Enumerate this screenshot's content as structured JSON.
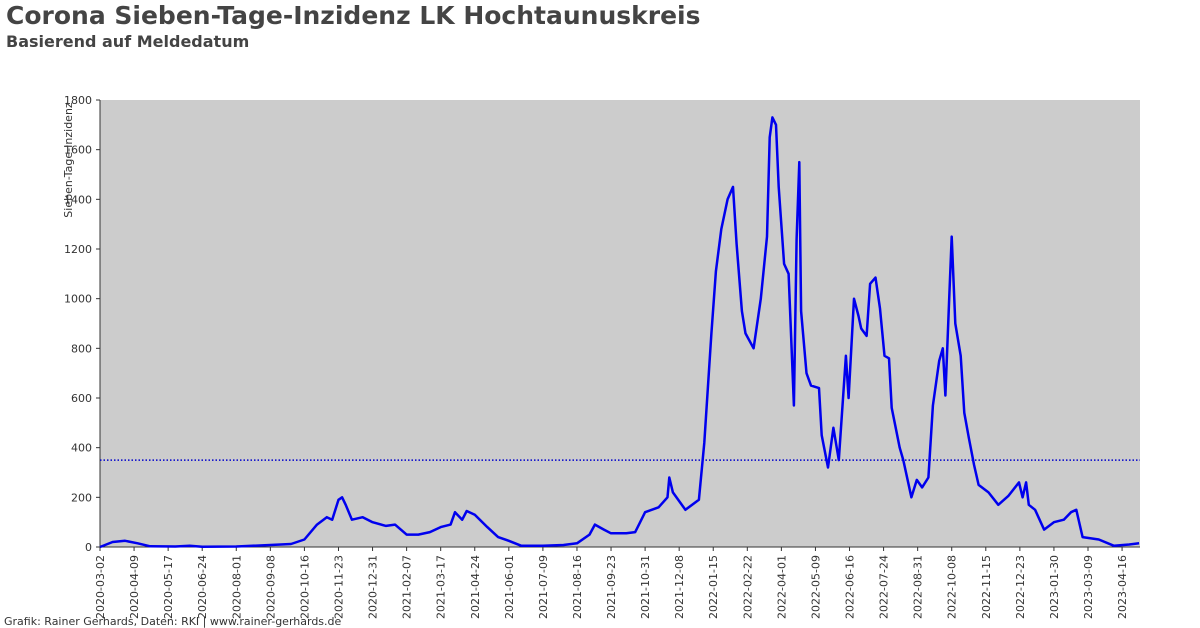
{
  "chart_data": {
    "type": "line",
    "title": "Corona Sieben-Tage-Inzidenz LK Hochtaunuskreis",
    "subtitle": "Basierend auf Meldedatum",
    "y_label": "Sieben-Tage-Inzidenz",
    "footer": "Grafik: Rainer Gerhards, Daten: RKI | www.rainer-gerhards.de",
    "xlim": [
      "2020-03-02",
      "2023-05-06"
    ],
    "ylim": [
      0,
      1800
    ],
    "yticks": [
      0,
      200,
      400,
      600,
      800,
      1000,
      1200,
      1400,
      1600,
      1800
    ],
    "xticks": [
      "2020-03-02",
      "2020-04-09",
      "2020-05-17",
      "2020-06-24",
      "2020-08-01",
      "2020-09-08",
      "2020-10-16",
      "2020-11-23",
      "2020-12-31",
      "2021-02-07",
      "2021-03-17",
      "2021-04-24",
      "2021-06-01",
      "2021-07-09",
      "2021-08-16",
      "2021-09-23",
      "2021-10-31",
      "2021-12-08",
      "2022-01-15",
      "2022-02-22",
      "2022-04-01",
      "2022-05-09",
      "2022-06-16",
      "2022-07-24",
      "2022-08-31",
      "2022-10-08",
      "2022-11-15",
      "2022-12-23",
      "2023-01-30",
      "2023-03-09",
      "2023-04-16"
    ],
    "reference_line": 350,
    "reference_color": "#0000cc",
    "x": [
      "2020-03-02",
      "2020-03-16",
      "2020-03-30",
      "2020-04-13",
      "2020-04-27",
      "2020-05-25",
      "2020-06-10",
      "2020-06-24",
      "2020-08-01",
      "2020-09-08",
      "2020-10-01",
      "2020-10-16",
      "2020-10-30",
      "2020-11-10",
      "2020-11-16",
      "2020-11-23",
      "2020-11-27",
      "2020-12-01",
      "2020-12-08",
      "2020-12-20",
      "2020-12-31",
      "2021-01-15",
      "2021-01-25",
      "2021-02-07",
      "2021-02-20",
      "2021-03-05",
      "2021-03-17",
      "2021-03-28",
      "2021-04-02",
      "2021-04-10",
      "2021-04-15",
      "2021-04-24",
      "2021-05-08",
      "2021-05-20",
      "2021-06-01",
      "2021-06-15",
      "2021-07-09",
      "2021-08-01",
      "2021-08-16",
      "2021-08-30",
      "2021-09-05",
      "2021-09-15",
      "2021-09-23",
      "2021-10-10",
      "2021-10-20",
      "2021-10-31",
      "2021-11-15",
      "2021-11-25",
      "2021-11-27",
      "2021-12-01",
      "2021-12-15",
      "2021-12-30",
      "2022-01-05",
      "2022-01-13",
      "2022-01-18",
      "2022-01-24",
      "2022-01-31",
      "2022-02-06",
      "2022-02-10",
      "2022-02-16",
      "2022-02-20",
      "2022-03-01",
      "2022-03-09",
      "2022-03-16",
      "2022-03-19",
      "2022-03-22",
      "2022-03-26",
      "2022-03-29",
      "2022-04-04",
      "2022-04-09",
      "2022-04-15",
      "2022-04-18",
      "2022-04-21",
      "2022-04-23",
      "2022-04-29",
      "2022-05-04",
      "2022-05-13",
      "2022-05-16",
      "2022-05-23",
      "2022-05-29",
      "2022-06-04",
      "2022-06-12",
      "2022-06-15",
      "2022-06-21",
      "2022-06-26",
      "2022-06-29",
      "2022-07-05",
      "2022-07-09",
      "2022-07-15",
      "2022-07-20",
      "2022-07-25",
      "2022-07-30",
      "2022-08-02",
      "2022-08-06",
      "2022-08-11",
      "2022-08-15",
      "2022-08-24",
      "2022-08-30",
      "2022-09-05",
      "2022-09-12",
      "2022-09-17",
      "2022-09-24",
      "2022-09-28",
      "2022-10-01",
      "2022-10-05",
      "2022-10-08",
      "2022-10-12",
      "2022-10-18",
      "2022-10-22",
      "2022-10-27",
      "2022-11-02",
      "2022-11-07",
      "2022-11-18",
      "2022-11-29",
      "2022-12-10",
      "2022-12-22",
      "2022-12-26",
      "2022-12-30",
      "2023-01-02",
      "2023-01-09",
      "2023-01-19",
      "2023-01-30",
      "2023-02-10",
      "2023-02-18",
      "2023-02-24",
      "2023-03-03",
      "2023-03-21",
      "2023-04-07",
      "2023-04-24",
      "2023-05-05"
    ],
    "series": [
      {
        "name": "Sieben-Tage-Inzidenz",
        "color": "#0000ee",
        "values": [
          0,
          20,
          25,
          15,
          3,
          2,
          5,
          1,
          2,
          8,
          12,
          30,
          90,
          120,
          110,
          190,
          200,
          170,
          110,
          120,
          100,
          85,
          90,
          50,
          50,
          60,
          80,
          90,
          140,
          110,
          145,
          130,
          80,
          40,
          25,
          5,
          5,
          8,
          15,
          50,
          90,
          70,
          55,
          55,
          60,
          140,
          160,
          200,
          280,
          220,
          150,
          190,
          420,
          860,
          1110,
          1280,
          1400,
          1450,
          1220,
          950,
          860,
          800,
          1000,
          1250,
          1650,
          1730,
          1700,
          1450,
          1140,
          1100,
          570,
          1240,
          1550,
          950,
          700,
          650,
          640,
          450,
          320,
          480,
          350,
          770,
          600,
          1000,
          930,
          880,
          850,
          1060,
          1085,
          960,
          770,
          760,
          560,
          490,
          400,
          350,
          200,
          270,
          240,
          280,
          570,
          750,
          800,
          610,
          980,
          1250,
          900,
          770,
          540,
          440,
          330,
          250,
          220,
          170,
          205,
          260,
          200,
          260,
          170,
          150,
          70,
          100,
          110,
          140,
          150,
          40,
          30,
          5,
          10,
          15
        ]
      }
    ]
  }
}
